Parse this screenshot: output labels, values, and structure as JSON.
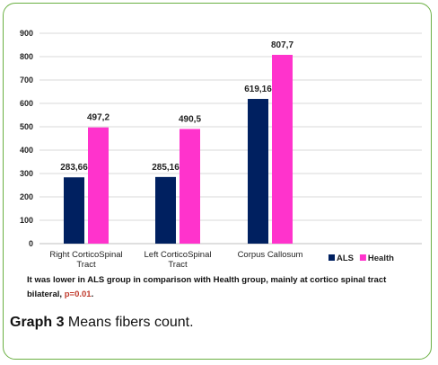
{
  "chart_data": {
    "type": "bar",
    "categories": [
      [
        "Right CorticoSpinal",
        "Tract"
      ],
      [
        "Left CorticoSpinal",
        "Tract"
      ],
      [
        "Corpus Callosum"
      ]
    ],
    "series": [
      {
        "name": "ALS",
        "color": "#002060",
        "values": [
          283.66,
          285.16,
          619.16
        ],
        "labels": [
          "283,66",
          "285,16",
          "619,16"
        ]
      },
      {
        "name": "Health",
        "color": "#ff33cc",
        "values": [
          497.2,
          490.5,
          807.7
        ],
        "labels": [
          "497,2",
          "490,5",
          "807,7"
        ]
      }
    ],
    "ylim": [
      0,
      900
    ],
    "yticks": [
      0,
      100,
      200,
      300,
      400,
      500,
      600,
      700,
      800,
      900
    ],
    "grid": true,
    "legend": "bottom-right",
    "title": "",
    "xlabel": "",
    "ylabel": ""
  },
  "note": {
    "text": "It was lower in ALS group in comparison with Health group, mainly at cortico spinal tract bilateral, ",
    "pvalue": "p=0.01",
    "end": "."
  },
  "caption": {
    "label": "Graph 3",
    "text": " Means fibers count."
  }
}
